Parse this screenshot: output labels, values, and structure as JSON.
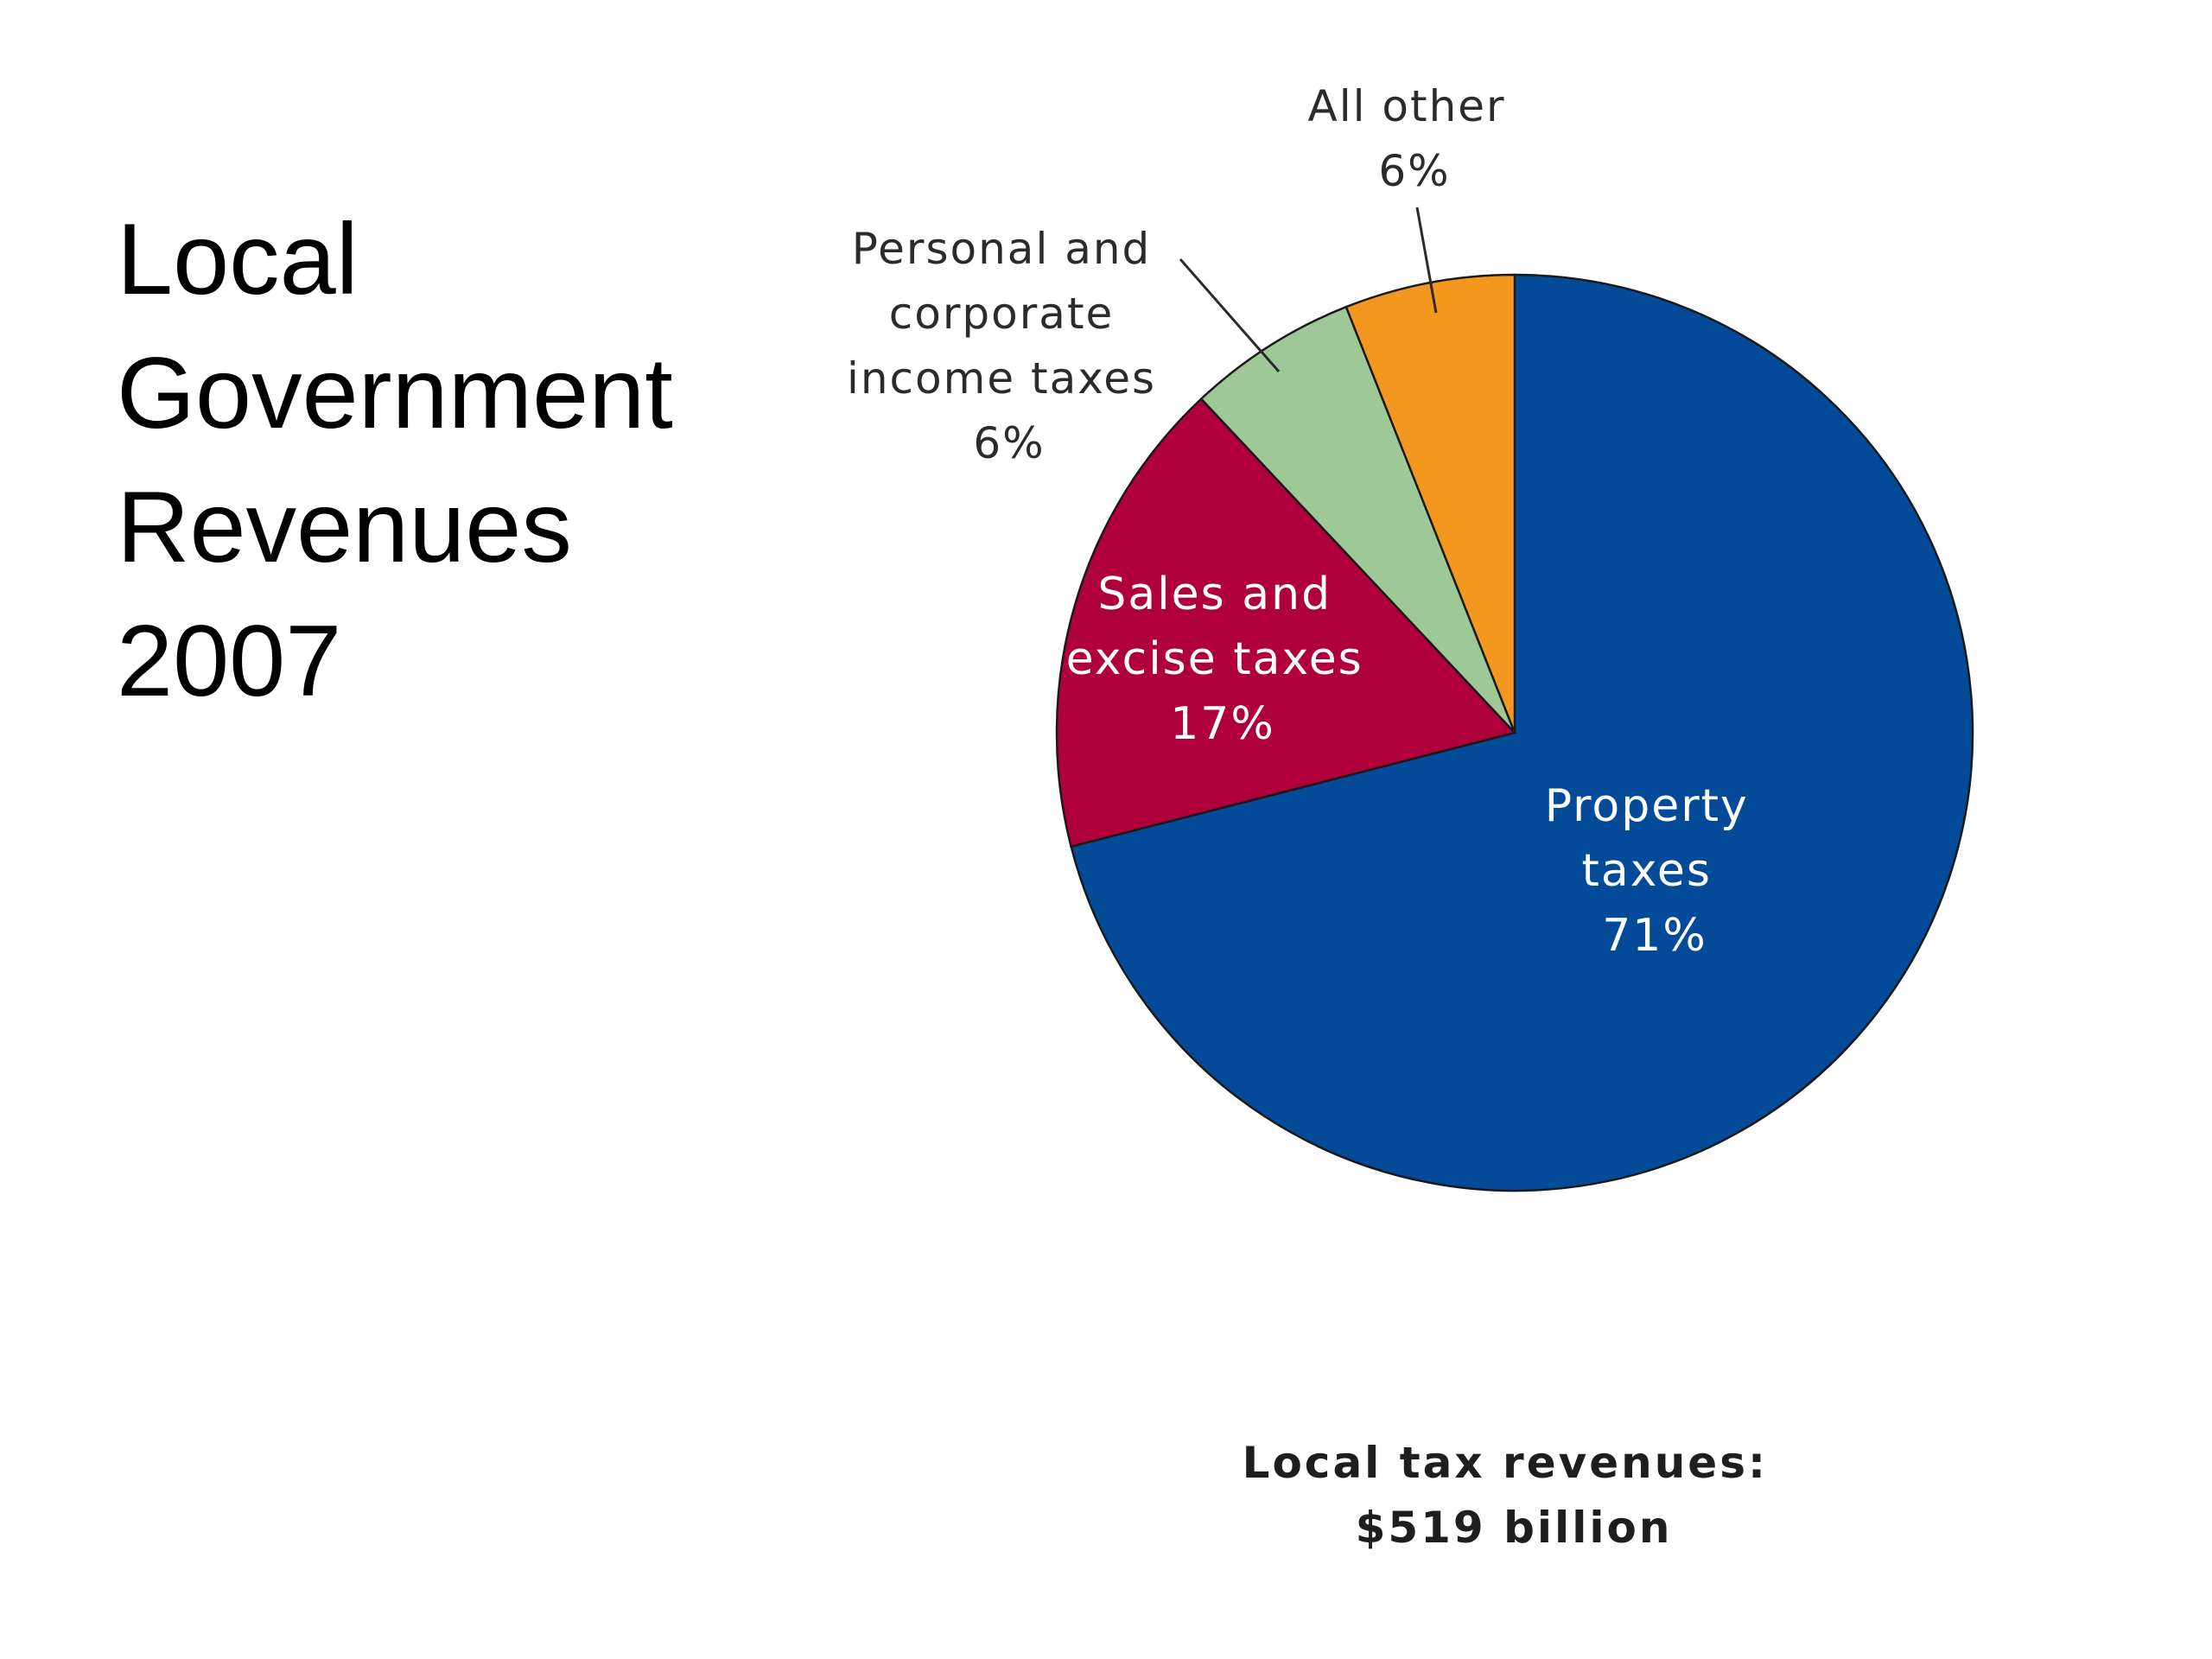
{
  "slide": {
    "title_lines": [
      "Local",
      "Government",
      "Revenues",
      "2007"
    ]
  },
  "chart_data": {
    "type": "pie",
    "slices": [
      {
        "name": "Property taxes",
        "label_lines": [
          "Property",
          "taxes",
          "71%"
        ],
        "value": 71,
        "color": "#034b99"
      },
      {
        "name": "Sales and excise taxes",
        "label_lines": [
          "Sales and",
          "excise taxes",
          "17%"
        ],
        "value": 17,
        "color": "#b0003c"
      },
      {
        "name": "Personal and corporate income taxes",
        "label_lines": [
          "Personal and",
          "corporate",
          "income taxes",
          "6%"
        ],
        "value": 6,
        "color": "#9ec996"
      },
      {
        "name": "All other",
        "label_lines": [
          "All other",
          "6%"
        ],
        "value": 6,
        "color": "#f3971f"
      }
    ],
    "total_lines": [
      "Local tax revenues:",
      "$519 billion"
    ]
  }
}
